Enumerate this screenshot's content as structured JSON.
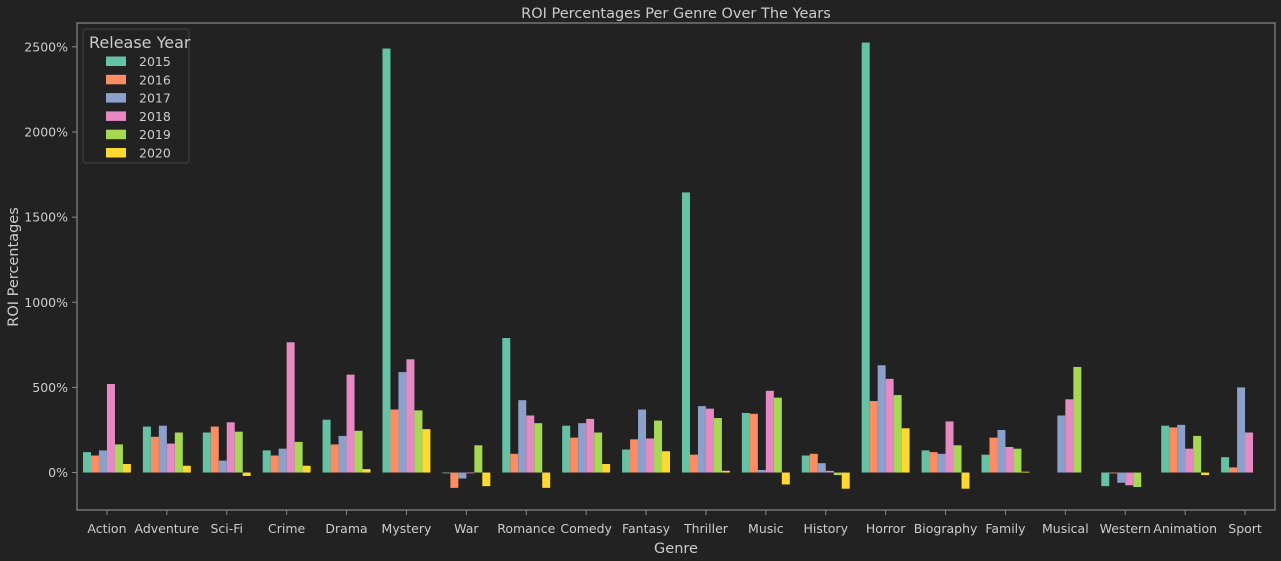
{
  "chart_data": {
    "type": "bar",
    "title": "ROI Percentages Per Genre Over The Years",
    "xlabel": "Genre",
    "ylabel": "ROI Percentages",
    "ylim": [
      -220,
      2640
    ],
    "yticks": [
      0,
      500,
      1000,
      1500,
      2000,
      2500
    ],
    "ytick_labels": [
      "0%",
      "500%",
      "1000%",
      "1500%",
      "2000%",
      "2500%"
    ],
    "grid": false,
    "legend": {
      "title": "Release Year",
      "placement": "top-left"
    },
    "categories": [
      "Action",
      "Adventure",
      "Sci-Fi",
      "Crime",
      "Drama",
      "Mystery",
      "War",
      "Romance",
      "Comedy",
      "Fantasy",
      "Thriller",
      "Music",
      "History",
      "Horror",
      "Biography",
      "Family",
      "Musical",
      "Western",
      "Animation",
      "Sport"
    ],
    "series": [
      {
        "name": "2015",
        "color": "#66c2a5",
        "values": [
          120,
          270,
          235,
          130,
          310,
          2490,
          0,
          790,
          275,
          135,
          1645,
          350,
          100,
          2525,
          130,
          105,
          null,
          -80,
          275,
          90
        ]
      },
      {
        "name": "2016",
        "color": "#fc8d62",
        "values": [
          100,
          210,
          270,
          100,
          165,
          370,
          -90,
          110,
          205,
          195,
          105,
          345,
          110,
          420,
          120,
          205,
          null,
          0,
          265,
          30
        ]
      },
      {
        "name": "2017",
        "color": "#8da0cb",
        "values": [
          130,
          275,
          70,
          140,
          215,
          590,
          -35,
          425,
          290,
          370,
          390,
          15,
          55,
          630,
          110,
          250,
          335,
          -60,
          280,
          500
        ]
      },
      {
        "name": "2018",
        "color": "#e78ac3",
        "values": [
          520,
          170,
          295,
          765,
          575,
          665,
          0,
          335,
          315,
          200,
          375,
          480,
          10,
          550,
          300,
          150,
          430,
          -75,
          140,
          235
        ]
      },
      {
        "name": "2019",
        "color": "#a6d854",
        "values": [
          165,
          235,
          240,
          180,
          245,
          365,
          160,
          290,
          235,
          305,
          320,
          440,
          -15,
          455,
          160,
          140,
          620,
          -85,
          215,
          null
        ]
      },
      {
        "name": "2020",
        "color": "#ffd92f",
        "values": [
          50,
          40,
          -20,
          40,
          20,
          255,
          -80,
          -90,
          50,
          125,
          10,
          -70,
          -95,
          260,
          -95,
          5,
          null,
          null,
          -15,
          null
        ]
      }
    ],
    "colors": {
      "background": "#222222",
      "axes_frame": "#888888",
      "text": "#cccccc",
      "legend_frame": "#444444"
    }
  }
}
